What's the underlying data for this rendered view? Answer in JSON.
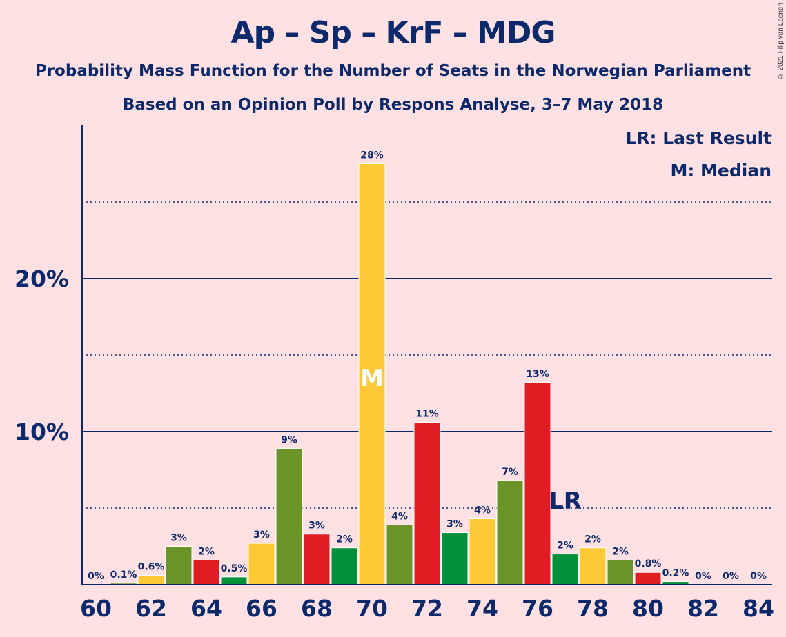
{
  "title": "Ap – Sp – KrF – MDG",
  "subtitle": "Probability Mass Function for the Number of Seats in the Norwegian Parliament",
  "subtitle2": "Based on an Opinion Poll by Respons Analyse, 3–7 May 2018",
  "copyright": "© 2021 Filip van Laenen",
  "legend": {
    "last_result": "LR: Last Result",
    "median": "M: Median"
  },
  "colors": {
    "background": "#FFE0E3",
    "text": "#0C2A6B",
    "yellow": "#FFC837",
    "olive": "#6A9427",
    "red": "#E01D23",
    "green": "#00913A"
  },
  "chart_data": {
    "type": "bar",
    "x": [
      60,
      61,
      62,
      63,
      64,
      65,
      66,
      67,
      68,
      69,
      70,
      71,
      72,
      73,
      74,
      75,
      76,
      77,
      78,
      79,
      80,
      81,
      82,
      83,
      84
    ],
    "values": [
      0,
      0.1,
      0.6,
      2.5,
      1.6,
      0.5,
      2.7,
      8.9,
      3.3,
      2.4,
      27.5,
      3.9,
      10.6,
      3.4,
      4.3,
      6.8,
      13.2,
      2.0,
      2.4,
      1.6,
      0.8,
      0.2,
      0,
      0,
      0
    ],
    "data_labels": [
      "0%",
      "0.1%",
      "0.6%",
      "3%",
      "2%",
      "0.5%",
      "3%",
      "9%",
      "3%",
      "2%",
      "28%",
      "4%",
      "11%",
      "3%",
      "4%",
      "7%",
      "13%",
      "2%",
      "2%",
      "2%",
      "0.8%",
      "0.2%",
      "0%",
      "0%",
      "0%"
    ],
    "bar_colors": [
      "yellow",
      "olive",
      "yellow",
      "olive",
      "red",
      "green",
      "yellow",
      "olive",
      "red",
      "green",
      "yellow",
      "olive",
      "red",
      "green",
      "yellow",
      "olive",
      "red",
      "green",
      "yellow",
      "olive",
      "red",
      "green",
      "yellow",
      "olive",
      "red"
    ],
    "x_tick_labels": [
      "60",
      "62",
      "64",
      "66",
      "68",
      "70",
      "72",
      "74",
      "76",
      "78",
      "80",
      "82",
      "84"
    ],
    "y_tick_labels": [
      "10%",
      "20%"
    ],
    "y_ticks": [
      10,
      20
    ],
    "dotted_gridlines": [
      5,
      15,
      25
    ],
    "ylim": [
      0,
      30
    ],
    "median_seat": 70,
    "median_label": "M",
    "last_result_seat": 77,
    "last_result_label": "LR"
  }
}
